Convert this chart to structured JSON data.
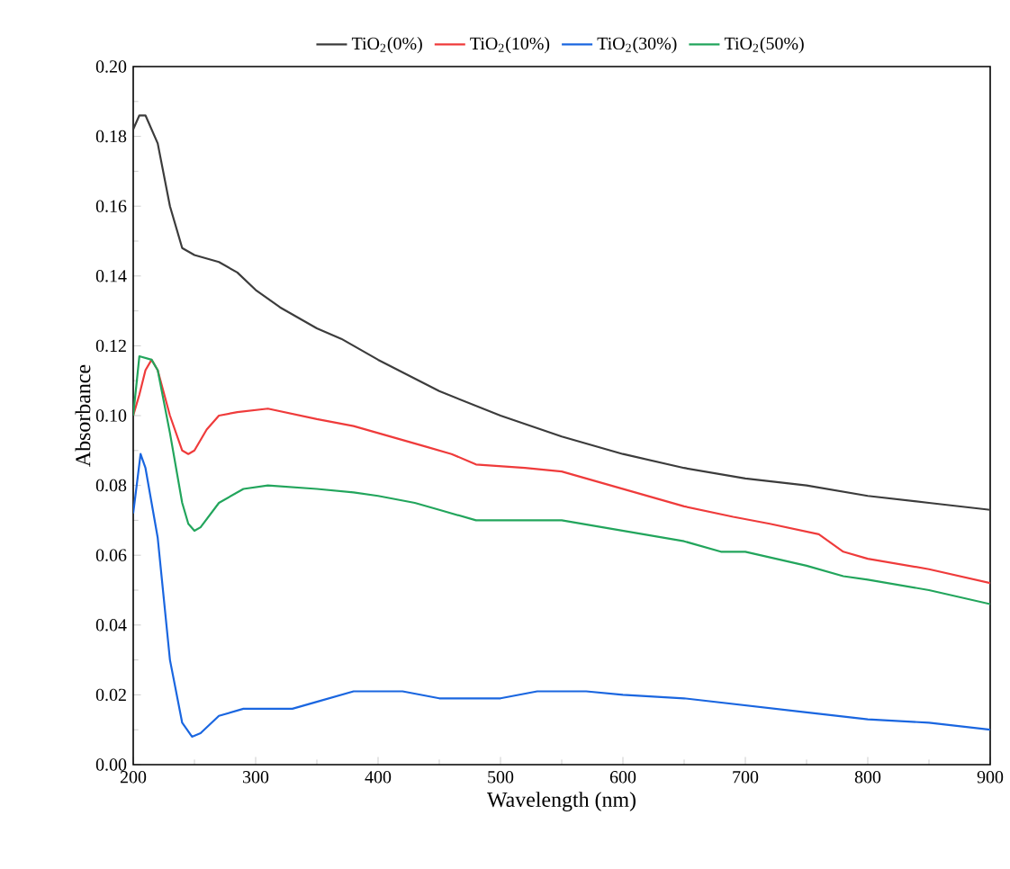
{
  "chart_data": {
    "type": "line",
    "xlabel": "Wavelength (nm)",
    "ylabel": "Absorbance",
    "legend": "top",
    "xlim": [
      200,
      900
    ],
    "ylim": [
      0,
      0.2
    ],
    "xticks": [
      200,
      300,
      400,
      500,
      600,
      700,
      800,
      900
    ],
    "yticks": [
      {
        "value": 0,
        "label": "0.00"
      },
      {
        "value": 0.02,
        "label": "0.02"
      },
      {
        "value": 0.04,
        "label": "0.04"
      },
      {
        "value": 0.06,
        "label": "0.06"
      },
      {
        "value": 0.08,
        "label": "0.08"
      },
      {
        "value": 0.1,
        "label": "0.10"
      },
      {
        "value": 0.12,
        "label": "0.12"
      },
      {
        "value": 0.14,
        "label": "0.14"
      },
      {
        "value": 0.16,
        "label": "0.16"
      },
      {
        "value": 0.18,
        "label": "0.18"
      },
      {
        "value": 0.2,
        "label": "0.20"
      }
    ],
    "series": [
      {
        "name": "TiO$_{2}$(0%)",
        "color": "#3c3c3c",
        "x": [
          200,
          205,
          210,
          220,
          230,
          240,
          250,
          270,
          285,
          300,
          320,
          350,
          370,
          400,
          450,
          500,
          550,
          600,
          650,
          700,
          750,
          800,
          850,
          900
        ],
        "values": [
          0.182,
          0.186,
          0.186,
          0.178,
          0.16,
          0.148,
          0.146,
          0.144,
          0.141,
          0.136,
          0.131,
          0.125,
          0.122,
          0.116,
          0.107,
          0.1,
          0.094,
          0.089,
          0.085,
          0.082,
          0.08,
          0.077,
          0.075,
          0.073
        ]
      },
      {
        "name": "TiO$_{2}$(10%)",
        "color": "#ef3b3b",
        "x": [
          200,
          205,
          210,
          215,
          220,
          230,
          240,
          245,
          250,
          260,
          270,
          285,
          310,
          350,
          380,
          400,
          420,
          440,
          460,
          480,
          520,
          550,
          600,
          650,
          690,
          720,
          760,
          780,
          800,
          850,
          900
        ],
        "values": [
          0.1,
          0.106,
          0.113,
          0.116,
          0.113,
          0.1,
          0.09,
          0.089,
          0.09,
          0.096,
          0.1,
          0.101,
          0.102,
          0.099,
          0.097,
          0.095,
          0.093,
          0.091,
          0.089,
          0.086,
          0.085,
          0.084,
          0.079,
          0.074,
          0.071,
          0.069,
          0.066,
          0.061,
          0.059,
          0.056,
          0.052
        ]
      },
      {
        "name": "TiO$_{2}$(30%)",
        "color": "#1a66e0",
        "x": [
          200,
          206,
          210,
          220,
          230,
          240,
          248,
          255,
          270,
          290,
          310,
          330,
          350,
          380,
          420,
          450,
          480,
          500,
          530,
          570,
          600,
          650,
          700,
          750,
          800,
          850,
          900
        ],
        "values": [
          0.072,
          0.089,
          0.085,
          0.065,
          0.03,
          0.012,
          0.008,
          0.009,
          0.014,
          0.016,
          0.016,
          0.016,
          0.018,
          0.021,
          0.021,
          0.019,
          0.019,
          0.019,
          0.021,
          0.021,
          0.02,
          0.019,
          0.017,
          0.015,
          0.013,
          0.012,
          0.01
        ]
      },
      {
        "name": "TiO$_{2}$(50%)",
        "color": "#22a55c",
        "x": [
          200,
          205,
          215,
          220,
          230,
          240,
          245,
          250,
          255,
          270,
          290,
          310,
          350,
          380,
          400,
          430,
          450,
          480,
          500,
          550,
          600,
          650,
          680,
          700,
          750,
          780,
          800,
          850,
          900
        ],
        "values": [
          0.1,
          0.117,
          0.116,
          0.113,
          0.095,
          0.075,
          0.069,
          0.067,
          0.068,
          0.075,
          0.079,
          0.08,
          0.079,
          0.078,
          0.077,
          0.075,
          0.073,
          0.07,
          0.07,
          0.07,
          0.067,
          0.064,
          0.061,
          0.061,
          0.057,
          0.054,
          0.053,
          0.05,
          0.046
        ]
      }
    ]
  }
}
